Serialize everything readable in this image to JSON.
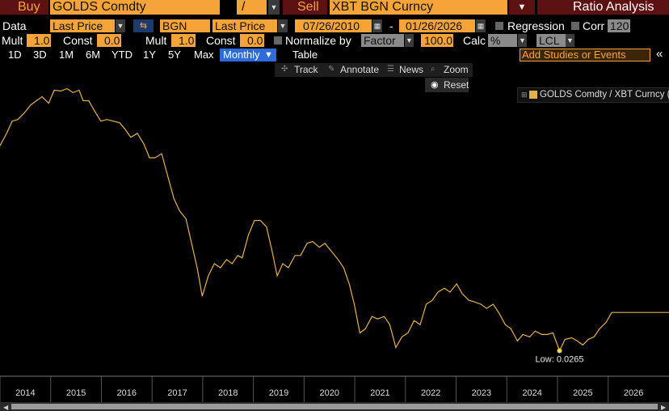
{
  "header": {
    "buy": "Buy",
    "buy_ticker": "GOLDS Comdty",
    "op": "/",
    "sell": "Sell",
    "sell_ticker": "XBT BGN Curncy",
    "function": "Ratio Analysis"
  },
  "data_row": {
    "label": "Data",
    "field1": "Last Price",
    "source": "BGN",
    "field2": "Last Price",
    "start": "07/26/2010",
    "dash": "-",
    "end": "01/26/2026",
    "regression": "Regression",
    "corr": "Corr",
    "corr_window": "120"
  },
  "mult_row": {
    "mult1_label": "Mult",
    "mult1": "1.0",
    "const1_label": "Const",
    "const1": "0.0",
    "mult2_label": "Mult",
    "mult2": "1.0",
    "const2_label": "Const",
    "const2": "0.0",
    "normalize": "Normalize by",
    "factor": "Factor",
    "factor_value": "100.0",
    "calc": "Calc",
    "calc_value": "%",
    "currency": "LCL"
  },
  "periods": [
    "1D",
    "3D",
    "1M",
    "6M",
    "YTD",
    "1Y",
    "5Y",
    "Max",
    "Monthly"
  ],
  "table": "Table",
  "studies": "Add Studies or Events",
  "tools": [
    "Track",
    "Annotate",
    "News",
    "Zoom"
  ],
  "reset": "Reset",
  "chart_data": {
    "type": "line",
    "log_y": true,
    "annotation": "Low: 0.0265",
    "xlim": [
      2014,
      2027.2
    ],
    "xticks": [
      2014,
      2015,
      2016,
      2017,
      2018,
      2019,
      2020,
      2021,
      2022,
      2023,
      2024,
      2025,
      2026
    ],
    "ylim": [
      0.015,
      12
    ],
    "x": [
      2014,
      2014.13,
      2014.24,
      2014.35,
      2014.48,
      2014.61,
      2014.72,
      2014.83,
      2014.96,
      2015.07,
      2015.2,
      2015.32,
      2015.44,
      2015.56,
      2015.64,
      2015.75,
      2015.87,
      2015.99,
      2016.11,
      2016.23,
      2016.36,
      2016.47,
      2016.58,
      2016.71,
      2016.84,
      2016.95,
      2017.06,
      2017.19,
      2017.32,
      2017.43,
      2017.54,
      2017.67,
      2017.78,
      2017.89,
      2017.99,
      2018.11,
      2018.23,
      2018.35,
      2018.47,
      2018.58,
      2018.69,
      2018.78,
      2018.9,
      2019.02,
      2019.14,
      2019.26,
      2019.37,
      2019.47,
      2019.58,
      2019.69,
      2019.82,
      2019.93,
      2020.06,
      2020.17,
      2020.3,
      2020.41,
      2020.54,
      2020.67,
      2020.78,
      2020.89,
      2020.99,
      2021.1,
      2021.21,
      2021.34,
      2021.45,
      2021.58,
      2021.69,
      2021.81,
      2021.93,
      2022.05,
      2022.17,
      2022.29,
      2022.41,
      2022.53,
      2022.64,
      2022.77,
      2022.88,
      2023.01,
      2023.12,
      2023.25,
      2023.36,
      2023.49,
      2023.6,
      2023.73,
      2023.84,
      2023.97,
      2024.08,
      2024.21,
      2024.32,
      2024.45,
      2024.56,
      2024.69,
      2024.8,
      2024.91,
      2025.04,
      2025.15,
      2025.28,
      2025.39,
      2025.5,
      2025.61,
      2025.72,
      2025.83,
      2025.96,
      2026.07
    ],
    "series": [
      {
        "name": "GOLDS Comdty / XBT Curncy (",
        "color": "#e3b24a",
        "values": [
          2.58,
          3.4,
          4.47,
          4.63,
          5.36,
          6.43,
          7.04,
          7.71,
          6.66,
          8.91,
          8.75,
          9.24,
          8.44,
          8.91,
          7.04,
          7.04,
          5.55,
          4.47,
          4.63,
          4.47,
          4.31,
          3.72,
          3.11,
          3.4,
          2.68,
          1.97,
          1.97,
          2.16,
          1.25,
          0.794,
          0.604,
          0.504,
          0.292,
          0.169,
          0.0896,
          0.141,
          0.185,
          0.169,
          0.203,
          0.185,
          0.222,
          0.211,
          0.35,
          0.486,
          0.486,
          0.42,
          0.244,
          0.141,
          0.185,
          0.169,
          0.222,
          0.222,
          0.292,
          0.303,
          0.267,
          0.292,
          0.244,
          0.203,
          0.169,
          0.118,
          0.0747,
          0.0395,
          0.0433,
          0.0569,
          0.0539,
          0.0569,
          0.0474,
          0.0285,
          0.0361,
          0.0395,
          0.0519,
          0.0474,
          0.0747,
          0.0818,
          0.0981,
          0.107,
          0.0981,
          0.118,
          0.0946,
          0.0818,
          0.0789,
          0.0747,
          0.0682,
          0.0747,
          0.0623,
          0.0474,
          0.0433,
          0.033,
          0.0381,
          0.0361,
          0.041,
          0.0381,
          0.0381,
          0.0395,
          0.0265,
          0.0342,
          0.0354,
          0.033,
          0.0301,
          0.0342,
          0.0361,
          0.0433,
          0.05,
          0.0623
        ]
      }
    ]
  }
}
